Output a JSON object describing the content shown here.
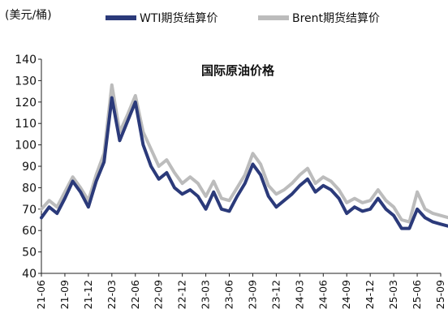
{
  "chart_data": {
    "type": "line",
    "title": "国际原油价格",
    "ylabel": "(美元/桶)",
    "xlabel": "",
    "ylim": [
      40,
      140
    ],
    "yticks": [
      40,
      50,
      60,
      70,
      80,
      90,
      100,
      110,
      120,
      130,
      140
    ],
    "xticks": [
      "21-06",
      "21-09",
      "21-12",
      "22-03",
      "22-06",
      "22-09",
      "22-12",
      "23-03",
      "23-06",
      "23-09",
      "23-12",
      "24-03",
      "24-06",
      "24-09",
      "24-12",
      "25-03",
      "25-06",
      "25-09"
    ],
    "legend_position": "top",
    "grid": false,
    "series": [
      {
        "name": "WTI期货结算价",
        "color": "#2b3a7a",
        "values": [
          [
            "21-06",
            66
          ],
          [
            "21-07",
            71
          ],
          [
            "21-08",
            68
          ],
          [
            "21-09",
            75
          ],
          [
            "21-10",
            83
          ],
          [
            "21-11",
            78
          ],
          [
            "21-12",
            71
          ],
          [
            "22-01",
            83
          ],
          [
            "22-02",
            92
          ],
          [
            "22-03",
            122
          ],
          [
            "22-04",
            102
          ],
          [
            "22-05",
            111
          ],
          [
            "22-06",
            120
          ],
          [
            "22-07",
            100
          ],
          [
            "22-08",
            90
          ],
          [
            "22-09",
            84
          ],
          [
            "22-10",
            87
          ],
          [
            "22-11",
            80
          ],
          [
            "22-12",
            77
          ],
          [
            "23-01",
            79
          ],
          [
            "23-02",
            76
          ],
          [
            "23-03",
            70
          ],
          [
            "23-04",
            78
          ],
          [
            "23-05",
            70
          ],
          [
            "23-06",
            69
          ],
          [
            "23-07",
            76
          ],
          [
            "23-08",
            82
          ],
          [
            "23-09",
            91
          ],
          [
            "23-10",
            86
          ],
          [
            "23-11",
            76
          ],
          [
            "23-12",
            71
          ],
          [
            "24-01",
            74
          ],
          [
            "24-02",
            77
          ],
          [
            "24-03",
            81
          ],
          [
            "24-04",
            84
          ],
          [
            "24-05",
            78
          ],
          [
            "24-06",
            81
          ],
          [
            "24-07",
            79
          ],
          [
            "24-08",
            75
          ],
          [
            "24-09",
            68
          ],
          [
            "24-10",
            71
          ],
          [
            "24-11",
            69
          ],
          [
            "24-12",
            70
          ],
          [
            "25-01",
            75
          ],
          [
            "25-02",
            70
          ],
          [
            "25-03",
            67
          ],
          [
            "25-04",
            61
          ],
          [
            "25-05",
            61
          ],
          [
            "25-06",
            70
          ],
          [
            "25-07",
            66
          ],
          [
            "25-08",
            64
          ],
          [
            "25-09",
            63
          ],
          [
            "25-10",
            62
          ]
        ]
      },
      {
        "name": "Brent期货结算价",
        "color": "#bcbcbc",
        "values": [
          [
            "21-06",
            70
          ],
          [
            "21-07",
            74
          ],
          [
            "21-08",
            71
          ],
          [
            "21-09",
            78
          ],
          [
            "21-10",
            85
          ],
          [
            "21-11",
            80
          ],
          [
            "21-12",
            74
          ],
          [
            "22-01",
            86
          ],
          [
            "22-02",
            96
          ],
          [
            "22-03",
            128
          ],
          [
            "22-04",
            106
          ],
          [
            "22-05",
            114
          ],
          [
            "22-06",
            123
          ],
          [
            "22-07",
            106
          ],
          [
            "22-08",
            98
          ],
          [
            "22-09",
            90
          ],
          [
            "22-10",
            93
          ],
          [
            "22-11",
            87
          ],
          [
            "22-12",
            82
          ],
          [
            "23-01",
            85
          ],
          [
            "23-02",
            82
          ],
          [
            "23-03",
            76
          ],
          [
            "23-04",
            83
          ],
          [
            "23-05",
            75
          ],
          [
            "23-06",
            74
          ],
          [
            "23-07",
            80
          ],
          [
            "23-08",
            86
          ],
          [
            "23-09",
            96
          ],
          [
            "23-10",
            91
          ],
          [
            "23-11",
            81
          ],
          [
            "23-12",
            77
          ],
          [
            "24-01",
            79
          ],
          [
            "24-02",
            82
          ],
          [
            "24-03",
            86
          ],
          [
            "24-04",
            89
          ],
          [
            "24-05",
            82
          ],
          [
            "24-06",
            85
          ],
          [
            "24-07",
            83
          ],
          [
            "24-08",
            79
          ],
          [
            "24-09",
            73
          ],
          [
            "24-10",
            75
          ],
          [
            "24-11",
            73
          ],
          [
            "24-12",
            74
          ],
          [
            "25-01",
            79
          ],
          [
            "25-02",
            74
          ],
          [
            "25-03",
            71
          ],
          [
            "25-04",
            65
          ],
          [
            "25-05",
            64
          ],
          [
            "25-06",
            78
          ],
          [
            "25-07",
            70
          ],
          [
            "25-08",
            68
          ],
          [
            "25-09",
            67
          ],
          [
            "25-10",
            66
          ]
        ]
      }
    ]
  }
}
